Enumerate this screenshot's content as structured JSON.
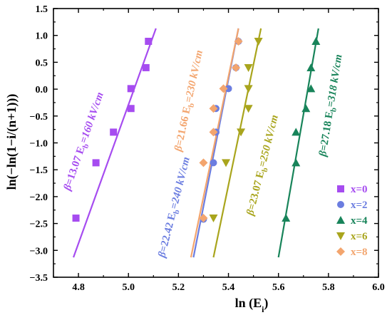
{
  "chart_data": {
    "type": "scatter",
    "xlabel_main": "ln (E",
    "xlabel_sub": "i",
    "xlabel_end": ")",
    "ylabel": "ln(−ln(1−i/(n+1)))",
    "xlim": [
      4.7,
      6.0
    ],
    "ylim": [
      -3.5,
      1.5
    ],
    "x_ticks": [
      4.8,
      5.0,
      5.2,
      5.4,
      5.6,
      5.8,
      6.0
    ],
    "y_ticks": [
      1.5,
      1.0,
      0.5,
      0.0,
      -0.5,
      -1.0,
      -1.5,
      -2.0,
      -2.5,
      -3.0,
      -3.5
    ],
    "x_tick_labels": [
      "4.8",
      "5.0",
      "5.2",
      "5.4",
      "5.6",
      "5.8",
      "6.0"
    ],
    "y_tick_labels": [
      "1.5",
      "1.0",
      "0.5",
      "0.0",
      "−0.5",
      "−1.0",
      "−1.5",
      "−2.0",
      "−2.5",
      "−3.0",
      "−3.5"
    ],
    "legend_position": "bottom-right",
    "series": [
      {
        "name": "x=0",
        "marker": "square",
        "color": "#a64cf0",
        "points": [
          [
            4.79,
            -2.4
          ],
          [
            4.87,
            -1.37
          ],
          [
            4.94,
            -0.8
          ],
          [
            5.01,
            -0.36
          ],
          [
            5.01,
            0.01
          ],
          [
            5.07,
            0.4
          ],
          [
            5.08,
            0.89
          ]
        ],
        "fit": [
          [
            4.78,
            -3.13
          ],
          [
            5.11,
            1.13
          ]
        ],
        "label": {
          "beta": "13.07",
          "eb": "160 kV/cm"
        }
      },
      {
        "name": "x=2",
        "marker": "circle",
        "color": "#6b7de0",
        "points": [
          [
            5.3,
            -2.42
          ],
          [
            5.34,
            -1.37
          ],
          [
            5.35,
            -0.8
          ],
          [
            5.35,
            -0.36
          ],
          [
            5.4,
            0.01
          ],
          [
            5.43,
            0.4
          ],
          [
            5.44,
            0.89
          ]
        ],
        "fit": [
          [
            5.26,
            -3.13
          ],
          [
            5.44,
            1.13
          ]
        ],
        "label": {
          "beta": "22.42",
          "eb": "240 kV/cm"
        }
      },
      {
        "name": "x=4",
        "marker": "triangle-up",
        "color": "#18845a",
        "points": [
          [
            5.63,
            -2.4
          ],
          [
            5.67,
            -1.37
          ],
          [
            5.67,
            -0.8
          ],
          [
            5.71,
            -0.36
          ],
          [
            5.73,
            0.01
          ],
          [
            5.73,
            0.4
          ],
          [
            5.75,
            0.89
          ]
        ],
        "fit": [
          [
            5.6,
            -3.13
          ],
          [
            5.76,
            1.13
          ]
        ],
        "label": {
          "beta": "27.18",
          "eb": "318 kV/cm"
        }
      },
      {
        "name": "x=6",
        "marker": "triangle-down",
        "color": "#a9a51d",
        "points": [
          [
            5.34,
            -2.4
          ],
          [
            5.39,
            -1.37
          ],
          [
            5.45,
            -0.8
          ],
          [
            5.48,
            -0.36
          ],
          [
            5.48,
            0.01
          ],
          [
            5.48,
            0.4
          ],
          [
            5.52,
            0.89
          ]
        ],
        "fit": [
          [
            5.34,
            -3.13
          ],
          [
            5.53,
            1.13
          ]
        ],
        "label": {
          "beta": "23.07",
          "eb": "250 kV/cm"
        }
      },
      {
        "name": "x=8",
        "marker": "diamond",
        "color": "#f3a56e",
        "points": [
          [
            5.3,
            -2.4
          ],
          [
            5.3,
            -1.37
          ],
          [
            5.34,
            -0.8
          ],
          [
            5.34,
            -0.36
          ],
          [
            5.38,
            0.01
          ],
          [
            5.43,
            0.4
          ],
          [
            5.44,
            0.89
          ]
        ],
        "fit": [
          [
            5.25,
            -3.13
          ],
          [
            5.44,
            1.13
          ]
        ],
        "label": {
          "beta": "21.66",
          "eb": "230 kV/cm"
        }
      }
    ]
  }
}
